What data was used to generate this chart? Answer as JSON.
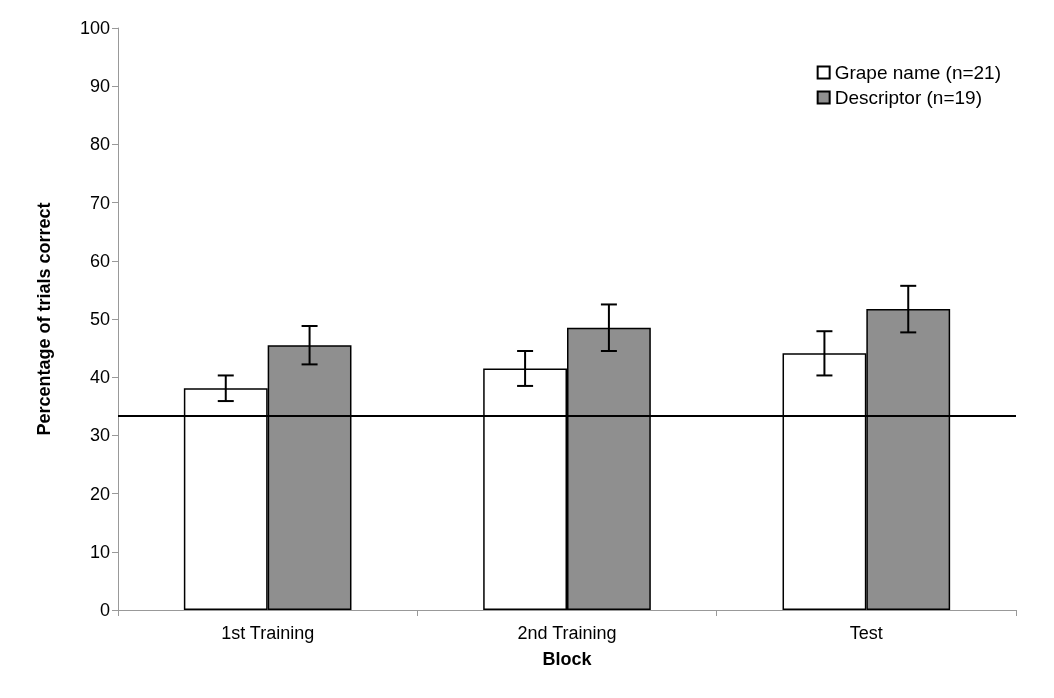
{
  "chart_data": {
    "type": "bar",
    "xlabel": "Block",
    "ylabel": "Percentage of trials correct",
    "categories": [
      "1st Training",
      "2nd Training",
      "Test"
    ],
    "series": [
      {
        "name": "Grape name (n=21)",
        "color": "#ffffff",
        "values": [
          38.1,
          41.5,
          44.1
        ],
        "errors": [
          2.2,
          3.0,
          3.8
        ]
      },
      {
        "name": "Descriptor (n=19)",
        "color": "#8f8f8f",
        "values": [
          45.5,
          48.5,
          51.7
        ],
        "errors": [
          3.3,
          4.0,
          4.0
        ]
      }
    ],
    "ylim": [
      0,
      100
    ],
    "yticks": [
      0,
      10,
      20,
      30,
      40,
      50,
      60,
      70,
      80,
      90,
      100
    ],
    "ref_lines": [
      {
        "axis": "y",
        "value": 33.3,
        "color": "#000000"
      }
    ],
    "grid": false,
    "legend": "top right"
  }
}
